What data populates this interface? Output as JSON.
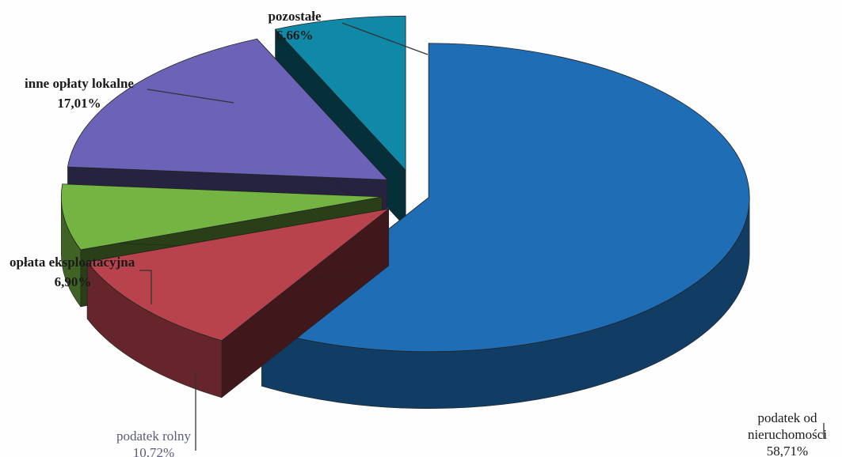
{
  "chart_data": {
    "type": "pie",
    "style": "3d-exploded",
    "title": "",
    "slices": [
      {
        "name": "podatek od nieruchomości",
        "label_lines": [
          "podatek od",
          "nieruchomości"
        ],
        "value": 58.71,
        "display": "58,71%",
        "color": "#1e6db5"
      },
      {
        "name": "podatek rolny",
        "label_lines": [
          "podatek rolny"
        ],
        "value": 10.72,
        "display": "10,72%",
        "color": "#b8434d"
      },
      {
        "name": "opłata eksploatacyjna",
        "label_lines": [
          "opłata eksploatacyjna"
        ],
        "value": 6.9,
        "display": "6,90%",
        "color": "#74b443"
      },
      {
        "name": "inne opłaty lokalne",
        "label_lines": [
          "inne opłaty lokalne"
        ],
        "value": 17.01,
        "display": "17,01%",
        "color": "#6a63b8"
      },
      {
        "name": "pozostałe",
        "label_lines": [
          "pozostałe"
        ],
        "value": 6.66,
        "display": "6,66%",
        "color": "#0f89a7"
      }
    ]
  }
}
